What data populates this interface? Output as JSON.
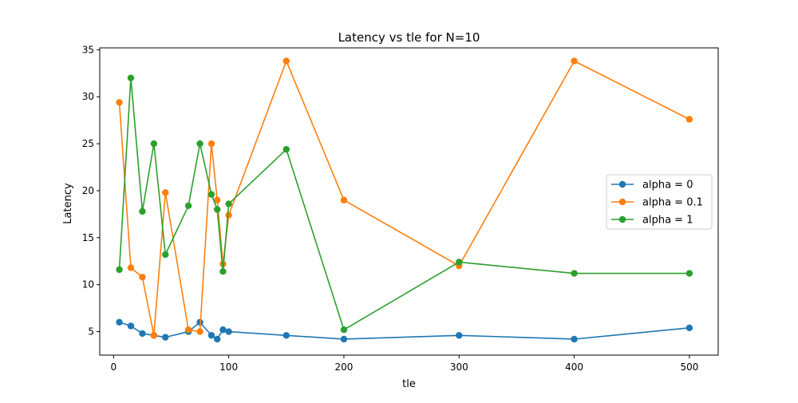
{
  "chart_data": {
    "type": "line",
    "title": "Latency vs tle for N=10",
    "xlabel": "tle",
    "ylabel": "Latency",
    "xlim": [
      -12,
      525
    ],
    "ylim": [
      2.5,
      35.2
    ],
    "xticks": [
      0,
      100,
      200,
      300,
      400,
      500
    ],
    "yticks": [
      5,
      10,
      15,
      20,
      25,
      30,
      35
    ],
    "grid": false,
    "legend_position": "center-right",
    "series": [
      {
        "name": "alpha = 0",
        "color": "#1f77b4",
        "x": [
          5,
          15,
          25,
          35,
          45,
          65,
          75,
          85,
          90,
          95,
          100,
          150,
          200,
          300,
          400,
          500
        ],
        "y": [
          6.0,
          5.6,
          4.8,
          4.6,
          4.4,
          5.0,
          6.0,
          4.6,
          4.2,
          5.2,
          5.0,
          4.6,
          4.2,
          4.6,
          4.2,
          5.4
        ]
      },
      {
        "name": "alpha = 0.1",
        "color": "#ff7f0e",
        "x": [
          5,
          15,
          25,
          35,
          45,
          65,
          75,
          85,
          90,
          95,
          100,
          150,
          200,
          300,
          400,
          500
        ],
        "y": [
          29.4,
          11.8,
          10.8,
          4.6,
          19.8,
          5.2,
          5.0,
          25.0,
          19.0,
          12.2,
          17.4,
          33.8,
          19.0,
          12.0,
          33.8,
          27.6
        ]
      },
      {
        "name": "alpha = 1",
        "color": "#2ca02c",
        "x": [
          5,
          15,
          25,
          35,
          45,
          65,
          75,
          85,
          90,
          95,
          100,
          150,
          200,
          300,
          400,
          500
        ],
        "y": [
          11.6,
          32.0,
          17.8,
          25.0,
          13.2,
          18.4,
          25.0,
          19.6,
          18.0,
          11.4,
          18.6,
          24.4,
          5.2,
          12.4,
          11.2,
          11.2
        ]
      }
    ]
  }
}
